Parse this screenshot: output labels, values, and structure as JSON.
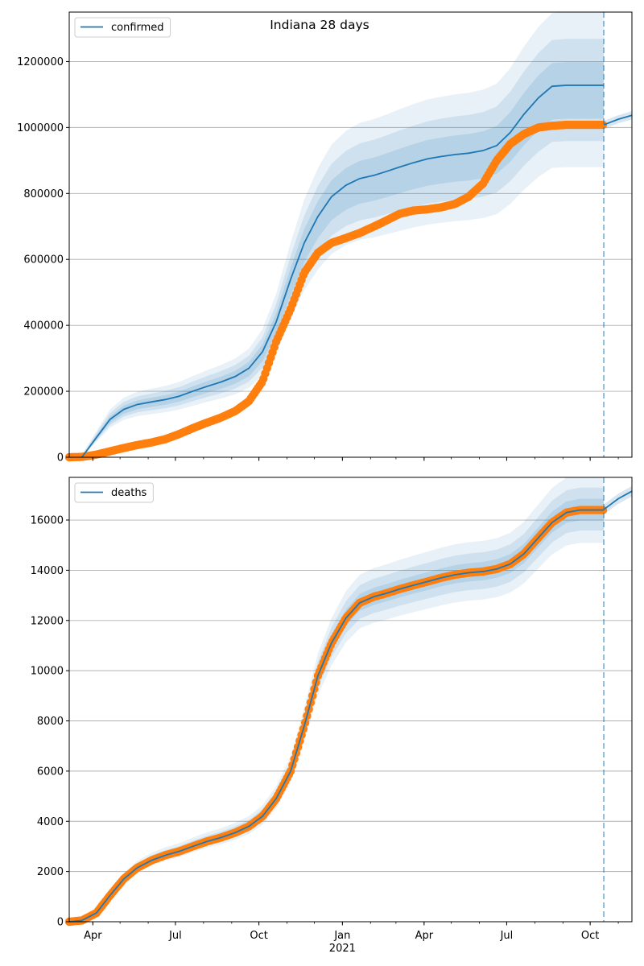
{
  "chart_data": [
    {
      "type": "line",
      "title": "Indiana 28 days",
      "ylim": [
        0,
        1350000
      ],
      "grid": "horizontal",
      "legend_position": "top-left",
      "y_ticks": [
        0,
        200000,
        400000,
        600000,
        800000,
        1000000,
        1200000
      ],
      "y_tick_labels": [
        "0",
        "200000",
        "400000",
        "600000",
        "800000",
        "1000000",
        "1200000"
      ],
      "forecast_start": "2021-10-16",
      "series": [
        {
          "name": "confirmed",
          "color": "#1f77b4",
          "kind": "model-line",
          "x": [
            "2020-03-20",
            "2020-04-05",
            "2020-04-20",
            "2020-05-05",
            "2020-05-20",
            "2020-06-05",
            "2020-06-20",
            "2020-07-05",
            "2020-07-20",
            "2020-08-05",
            "2020-08-20",
            "2020-09-05",
            "2020-09-20",
            "2020-10-05",
            "2020-10-20",
            "2020-11-05",
            "2020-11-20",
            "2020-12-05",
            "2020-12-20",
            "2021-01-05",
            "2021-01-20",
            "2021-02-05",
            "2021-02-20",
            "2021-03-05",
            "2021-03-20",
            "2021-04-05",
            "2021-04-20",
            "2021-05-05",
            "2021-05-20",
            "2021-06-05",
            "2021-06-20",
            "2021-07-05",
            "2021-07-20",
            "2021-08-05",
            "2021-08-20",
            "2021-09-05",
            "2021-09-20",
            "2021-10-05",
            "2021-10-16"
          ],
          "y": [
            0,
            60000,
            115000,
            145000,
            160000,
            168000,
            175000,
            185000,
            200000,
            215000,
            228000,
            245000,
            270000,
            320000,
            410000,
            540000,
            650000,
            730000,
            790000,
            825000,
            845000,
            855000,
            868000,
            880000,
            893000,
            905000,
            912000,
            918000,
            922000,
            930000,
            945000,
            985000,
            1040000,
            1090000,
            1125000,
            1128000,
            1128000,
            1128000,
            1128000
          ]
        },
        {
          "name": "",
          "color": "#1f77b4",
          "kind": "forecast-line",
          "x": [
            "2021-10-16",
            "2021-11-01",
            "2021-11-16"
          ],
          "y": [
            1008000,
            1025000,
            1037000
          ]
        },
        {
          "name": "",
          "color": "#ff7f0e",
          "kind": "observed-points",
          "x": [
            "2020-03-06",
            "2020-03-20",
            "2020-04-05",
            "2020-04-20",
            "2020-05-05",
            "2020-05-20",
            "2020-06-05",
            "2020-06-20",
            "2020-07-05",
            "2020-07-20",
            "2020-08-05",
            "2020-08-20",
            "2020-09-05",
            "2020-09-20",
            "2020-10-05",
            "2020-10-20",
            "2020-11-05",
            "2020-11-20",
            "2020-12-05",
            "2020-12-20",
            "2021-01-05",
            "2021-01-20",
            "2021-02-05",
            "2021-02-20",
            "2021-03-05",
            "2021-03-20",
            "2021-04-05",
            "2021-04-20",
            "2021-05-05",
            "2021-05-20",
            "2021-06-05",
            "2021-06-20",
            "2021-07-05",
            "2021-07-20",
            "2021-08-05",
            "2021-08-20",
            "2021-09-05",
            "2021-09-20",
            "2021-10-05",
            "2021-10-16"
          ],
          "y": [
            0,
            1000,
            8000,
            18000,
            28000,
            37000,
            45000,
            55000,
            70000,
            88000,
            105000,
            120000,
            140000,
            170000,
            230000,
            350000,
            450000,
            560000,
            620000,
            650000,
            665000,
            680000,
            700000,
            720000,
            738000,
            748000,
            752000,
            758000,
            768000,
            790000,
            830000,
            900000,
            950000,
            980000,
            1000000,
            1005000,
            1008000,
            1008000,
            1008000,
            1008000
          ]
        }
      ],
      "bands_relative": [
        [
          0.78,
          1.19
        ],
        [
          0.85,
          1.12
        ],
        [
          0.91,
          1.06
        ]
      ]
    },
    {
      "type": "line",
      "title": "",
      "ylim": [
        0,
        17700
      ],
      "grid": "horizontal",
      "legend_position": "top-left",
      "y_ticks": [
        0,
        2000,
        4000,
        6000,
        8000,
        10000,
        12000,
        14000,
        16000
      ],
      "y_tick_labels": [
        "0",
        "2000",
        "4000",
        "6000",
        "8000",
        "10000",
        "12000",
        "14000",
        "16000"
      ],
      "forecast_start": "2021-10-16",
      "series": [
        {
          "name": "deaths",
          "color": "#1f77b4",
          "kind": "model-line",
          "x": [
            "2020-03-06",
            "2020-03-20",
            "2020-04-05",
            "2020-04-20",
            "2020-05-05",
            "2020-05-20",
            "2020-06-05",
            "2020-06-20",
            "2020-07-05",
            "2020-07-20",
            "2020-08-05",
            "2020-08-20",
            "2020-09-05",
            "2020-09-20",
            "2020-10-05",
            "2020-10-20",
            "2020-11-05",
            "2020-11-20",
            "2020-12-05",
            "2020-12-20",
            "2021-01-05",
            "2021-01-20",
            "2021-02-05",
            "2021-02-20",
            "2021-03-05",
            "2021-03-20",
            "2021-04-05",
            "2021-04-20",
            "2021-05-05",
            "2021-05-20",
            "2021-06-05",
            "2021-06-20",
            "2021-07-05",
            "2021-07-20",
            "2021-08-05",
            "2021-08-20",
            "2021-09-05",
            "2021-09-20",
            "2021-10-05",
            "2021-10-16"
          ],
          "y": [
            0,
            50,
            350,
            1050,
            1700,
            2150,
            2450,
            2650,
            2800,
            3000,
            3200,
            3350,
            3550,
            3800,
            4200,
            4900,
            6000,
            7800,
            9800,
            11100,
            12100,
            12700,
            12950,
            13100,
            13250,
            13400,
            13550,
            13700,
            13820,
            13900,
            13950,
            14050,
            14250,
            14650,
            15300,
            15900,
            16300,
            16400,
            16400,
            16400
          ]
        },
        {
          "name": "",
          "color": "#1f77b4",
          "kind": "forecast-line",
          "x": [
            "2021-10-16",
            "2021-11-01",
            "2021-11-16"
          ],
          "y": [
            16420,
            16850,
            17150
          ]
        },
        {
          "name": "",
          "color": "#ff7f0e",
          "kind": "observed-points",
          "x": [
            "2020-03-06",
            "2020-03-20",
            "2020-04-05",
            "2020-04-20",
            "2020-05-05",
            "2020-05-20",
            "2020-06-05",
            "2020-06-20",
            "2020-07-05",
            "2020-07-20",
            "2020-08-05",
            "2020-08-20",
            "2020-09-05",
            "2020-09-20",
            "2020-10-05",
            "2020-10-20",
            "2020-11-05",
            "2020-11-20",
            "2020-12-05",
            "2020-12-20",
            "2021-01-05",
            "2021-01-20",
            "2021-02-05",
            "2021-02-20",
            "2021-03-05",
            "2021-03-20",
            "2021-04-05",
            "2021-04-20",
            "2021-05-05",
            "2021-05-20",
            "2021-06-05",
            "2021-06-20",
            "2021-07-05",
            "2021-07-20",
            "2021-08-05",
            "2021-08-20",
            "2021-09-05",
            "2021-09-20",
            "2021-10-05",
            "2021-10-16"
          ],
          "y": [
            0,
            50,
            350,
            1050,
            1700,
            2150,
            2450,
            2650,
            2800,
            3000,
            3200,
            3350,
            3550,
            3800,
            4200,
            4900,
            6000,
            7800,
            9800,
            11100,
            12100,
            12700,
            12950,
            13100,
            13250,
            13400,
            13550,
            13700,
            13820,
            13900,
            13950,
            14050,
            14250,
            14650,
            15300,
            15900,
            16300,
            16400,
            16400,
            16400
          ]
        }
      ],
      "bands_relative": [
        [
          0.92,
          1.08
        ],
        [
          0.95,
          1.05
        ],
        [
          0.975,
          1.025
        ]
      ]
    }
  ],
  "x_axis": {
    "range": [
      "2020-03-06",
      "2021-11-16"
    ],
    "ticks": [
      "2020-04-01",
      "2020-07-01",
      "2020-10-01",
      "2021-01-01",
      "2021-04-01",
      "2021-07-01",
      "2021-10-01"
    ],
    "tick_labels": [
      "Apr",
      "Jul",
      "Oct",
      "Jan",
      "Apr",
      "Jul",
      "Oct"
    ],
    "year_label": "2021"
  },
  "colors": {
    "model": "#1f77b4",
    "observed": "#ff7f0e",
    "grid": "#b0b0b0"
  }
}
